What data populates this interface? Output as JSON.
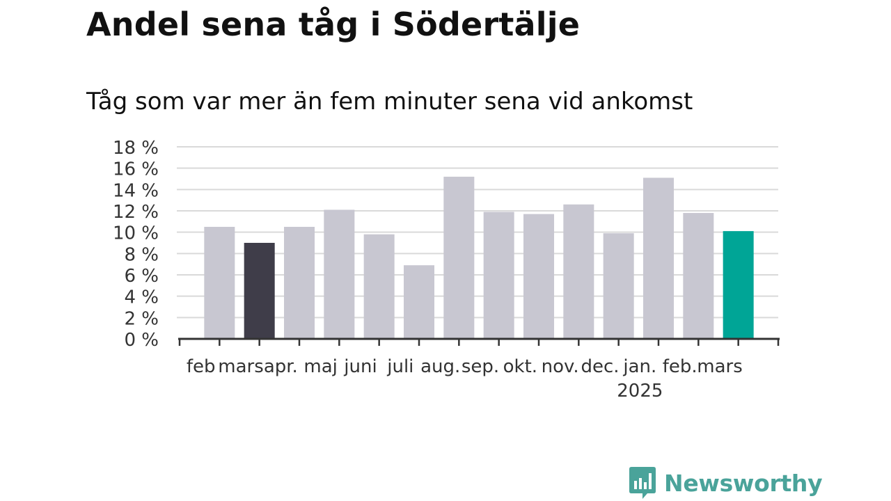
{
  "title": "Andel sena tåg i Södertälje",
  "subtitle": "Tåg som var mer än fem minuter sena vid ankomst",
  "brand": {
    "name": "Newsworthy",
    "icon": "bar-chart-bubble-icon",
    "color": "#4aa39a"
  },
  "colors": {
    "default": "#c8c7d1",
    "highlight_previous": "#3f3d49",
    "highlight_current": "#00a596",
    "grid": "#d9d9d9",
    "axis": "#333333"
  },
  "chart_data": {
    "type": "bar",
    "title": "Andel sena tåg i Södertälje",
    "subtitle": "Tåg som var mer än fem minuter sena vid ankomst",
    "categories": [
      "feb",
      "mars",
      "apr.",
      "maj",
      "juni",
      "juli",
      "aug.",
      "sep.",
      "okt.",
      "nov.",
      "dec.",
      "jan.",
      "feb.",
      "mars"
    ],
    "year_label": {
      "text": "2025",
      "under_category_index": 11
    },
    "values": [
      10.5,
      9.0,
      10.5,
      12.1,
      9.8,
      6.9,
      15.2,
      11.9,
      11.7,
      12.6,
      9.9,
      15.1,
      11.8,
      10.1
    ],
    "bar_colors": [
      "default",
      "highlight_previous",
      "default",
      "default",
      "default",
      "default",
      "default",
      "default",
      "default",
      "default",
      "default",
      "default",
      "default",
      "highlight_current"
    ],
    "ylim": [
      0,
      18
    ],
    "yticks": [
      0,
      2,
      4,
      6,
      8,
      10,
      12,
      14,
      16,
      18
    ],
    "ytick_labels": [
      "0 %",
      "2 %",
      "4 %",
      "6 %",
      "8 %",
      "10 %",
      "12 %",
      "14 %",
      "16 %",
      "18 %"
    ],
    "xlabel": "",
    "ylabel": "",
    "grid": true
  }
}
